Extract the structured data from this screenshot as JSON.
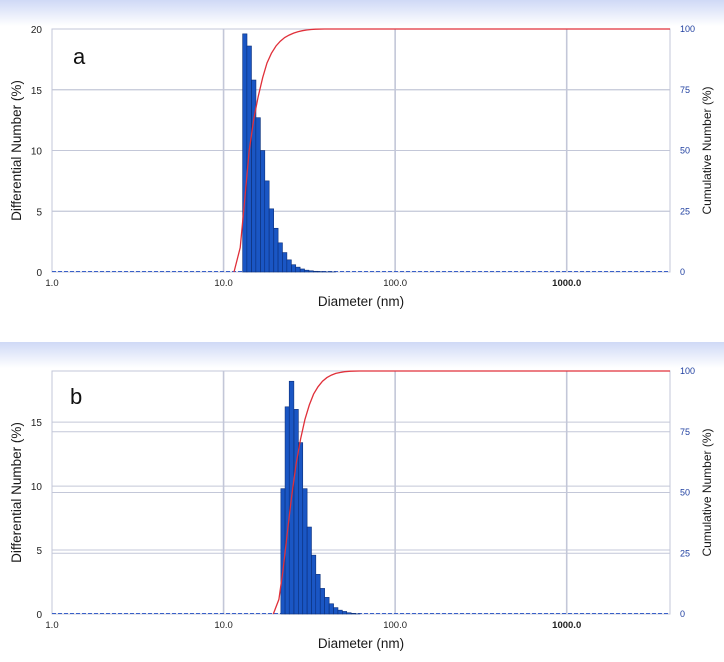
{
  "colors": {
    "bar": "#1a56c4",
    "bar_edge": "#0b2f7a",
    "cumulative_line": "#e0303a",
    "grid": "#c3c7d8",
    "header_gradient_top": "#cfd9f6",
    "right_axis_text": "#1f3fa0"
  },
  "chart_data": [
    {
      "type": "bar",
      "panel_label": "a",
      "x_scale": "log",
      "xlabel": "Diameter (nm)",
      "ylabel_left": "Differential Number (%)",
      "ylabel_right": "Cumulative Number (%)",
      "x_ticks": [
        "1.0",
        "10.0",
        "100.0",
        "1000.0"
      ],
      "xlim": [
        1.0,
        4000
      ],
      "ylim_left": [
        0,
        20
      ],
      "ylim_right": [
        0,
        100
      ],
      "y_ticks_left": [
        "0",
        "5",
        "10",
        "15",
        "20"
      ],
      "y_ticks_right": [
        "0",
        "25",
        "50",
        "75",
        "100"
      ],
      "grid": true,
      "series": [
        {
          "kind": "bar",
          "x": [
            13.3,
            14.1,
            15.0,
            15.9,
            16.9,
            17.9,
            19.0,
            20.2,
            21.4,
            22.7,
            24.1,
            25.6,
            27.1,
            28.8,
            30.5,
            32.4,
            34.4,
            36.5,
            38.7,
            41.1,
            43.6,
            46.3,
            49.1,
            52.1
          ],
          "values": [
            19.6,
            18.6,
            15.8,
            12.7,
            10.0,
            7.5,
            5.2,
            3.6,
            2.4,
            1.6,
            1.0,
            0.6,
            0.4,
            0.25,
            0.15,
            0.1,
            0.06,
            0.04,
            0.02,
            0.015,
            0.01,
            0.0,
            0.0,
            0.0
          ]
        },
        {
          "kind": "line",
          "axis": "right",
          "x": [
            11.5,
            12.5,
            13.3,
            14.1,
            15.0,
            15.9,
            16.9,
            17.9,
            19.0,
            20.2,
            21.4,
            22.7,
            24.1,
            25.6,
            27.1,
            28.8,
            30.5,
            32.4,
            34.4,
            38.7,
            44.0,
            55.0,
            4000
          ],
          "values": [
            0,
            10,
            30,
            50,
            63,
            72,
            80,
            86,
            90,
            93,
            95,
            96.5,
            97.5,
            98.3,
            98.9,
            99.3,
            99.6,
            99.8,
            99.9,
            100,
            100,
            100,
            100
          ]
        }
      ]
    },
    {
      "type": "bar",
      "panel_label": "b",
      "x_scale": "log",
      "xlabel": "Diameter (nm)",
      "ylabel_left": "Differential Number (%)",
      "ylabel_right": "Cumulative Number (%)",
      "x_ticks": [
        "1.0",
        "10.0",
        "100.0",
        "1000.0"
      ],
      "xlim": [
        1.0,
        4000
      ],
      "ylim_left": [
        0,
        19
      ],
      "ylim_right": [
        0,
        100
      ],
      "y_ticks_left": [
        "0",
        "5",
        "10",
        "15"
      ],
      "y_ticks_right": [
        "0",
        "25",
        "50",
        "75",
        "100"
      ],
      "grid": true,
      "series": [
        {
          "kind": "bar",
          "x": [
            22.2,
            23.5,
            24.9,
            26.5,
            28.1,
            29.8,
            31.6,
            33.5,
            35.5,
            37.7,
            40.0,
            42.5,
            45.1,
            47.8,
            50.7,
            53.8,
            57.1,
            60.6
          ],
          "values": [
            9.8,
            16.2,
            18.2,
            16.0,
            13.4,
            9.8,
            6.8,
            4.6,
            3.1,
            2.0,
            1.3,
            0.8,
            0.5,
            0.3,
            0.2,
            0.1,
            0.05,
            0.02
          ]
        },
        {
          "kind": "line",
          "axis": "right",
          "x": [
            19.5,
            21.0,
            22.2,
            23.5,
            24.9,
            26.5,
            28.1,
            29.8,
            31.6,
            33.5,
            35.5,
            37.7,
            40.0,
            42.5,
            45.1,
            47.8,
            50.7,
            55.0,
            62.0,
            4000
          ],
          "values": [
            0,
            6,
            18,
            33,
            48,
            62,
            72,
            80,
            86,
            90.5,
            93.5,
            95.8,
            97.3,
            98.3,
            99.0,
            99.4,
            99.7,
            99.9,
            100,
            100
          ]
        }
      ]
    }
  ]
}
